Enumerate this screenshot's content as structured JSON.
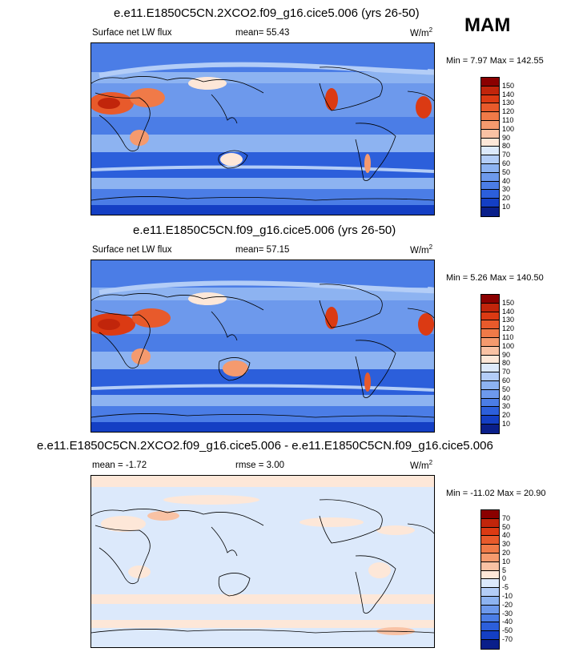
{
  "season": "MAM",
  "panels": [
    {
      "title": "e.e11.E1850C5CN.2XCO2.f09_g16.cice5.006 (yrs 26-50)",
      "left_label": "Surface net LW flux",
      "center_label": "mean=  55.43",
      "units_base": "W/m",
      "units_exp": "2",
      "minmax": "Min =   7.97 Max = 142.55",
      "colorbar_labels": [
        "150",
        "140",
        "130",
        "120",
        "110",
        "100",
        "90",
        "80",
        "70",
        "60",
        "50",
        "40",
        "30",
        "20",
        "10"
      ],
      "colorbar_colors": [
        "#8b0000",
        "#c1250b",
        "#db3a13",
        "#e85a2b",
        "#f07a48",
        "#f59a6e",
        "#f9c2a4",
        "#fde7d8",
        "#dce9fb",
        "#b3cdf7",
        "#8db3f1",
        "#6d99ec",
        "#4b7de6",
        "#2c5fdb",
        "#143fc4",
        "#0a1f8a"
      ]
    },
    {
      "title": "e.e11.E1850C5CN.f09_g16.cice5.006 (yrs 26-50)",
      "left_label": "Surface net LW flux",
      "center_label": "mean=  57.15",
      "units_base": "W/m",
      "units_exp": "2",
      "minmax": "Min =   5.26 Max = 140.50",
      "colorbar_labels": [
        "150",
        "140",
        "130",
        "120",
        "110",
        "100",
        "90",
        "80",
        "70",
        "60",
        "50",
        "40",
        "30",
        "20",
        "10"
      ],
      "colorbar_colors": [
        "#8b0000",
        "#c1250b",
        "#db3a13",
        "#e85a2b",
        "#f07a48",
        "#f59a6e",
        "#f9c2a4",
        "#fde7d8",
        "#dce9fb",
        "#b3cdf7",
        "#8db3f1",
        "#6d99ec",
        "#4b7de6",
        "#2c5fdb",
        "#143fc4",
        "#0a1f8a"
      ]
    },
    {
      "title": "e.e11.E1850C5CN.2XCO2.f09_g16.cice5.006 - e.e11.E1850C5CN.f09_g16.cice5.006",
      "left_label": "mean =  -1.72",
      "center_label": "rmse =   3.00",
      "units_base": "W/m",
      "units_exp": "2",
      "minmax": "Min = -11.02 Max =  20.90",
      "colorbar_labels": [
        "70",
        "50",
        "40",
        "30",
        "20",
        "10",
        "5",
        "0",
        "-5",
        "-10",
        "-20",
        "-30",
        "-40",
        "-50",
        "-70"
      ],
      "colorbar_colors": [
        "#8b0000",
        "#c1250b",
        "#db3a13",
        "#e85a2b",
        "#f07a48",
        "#f59a6e",
        "#f9c2a4",
        "#fde7d8",
        "#dce9fb",
        "#b3cdf7",
        "#8db3f1",
        "#6d99ec",
        "#4b7de6",
        "#2c5fdb",
        "#143fc4",
        "#0a1f8a"
      ]
    }
  ]
}
